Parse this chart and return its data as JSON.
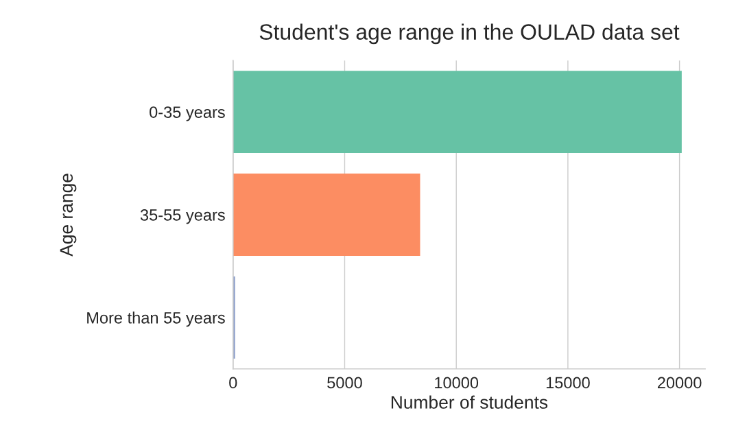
{
  "chart_data": {
    "type": "bar",
    "orientation": "horizontal",
    "title": "Student's age range in the OULAD data set",
    "xlabel": "Number of students",
    "ylabel": "Age range",
    "categories": [
      "0-35 years",
      "35-55 years",
      "More than 55 years"
    ],
    "values": [
      20100,
      8380,
      90
    ],
    "colors": [
      "#66c2a5",
      "#fc8d62",
      "#8da0cb"
    ],
    "xlim": [
      0,
      21150
    ],
    "xticks": [
      0,
      5000,
      10000,
      15000,
      20000
    ],
    "grid": "x"
  }
}
